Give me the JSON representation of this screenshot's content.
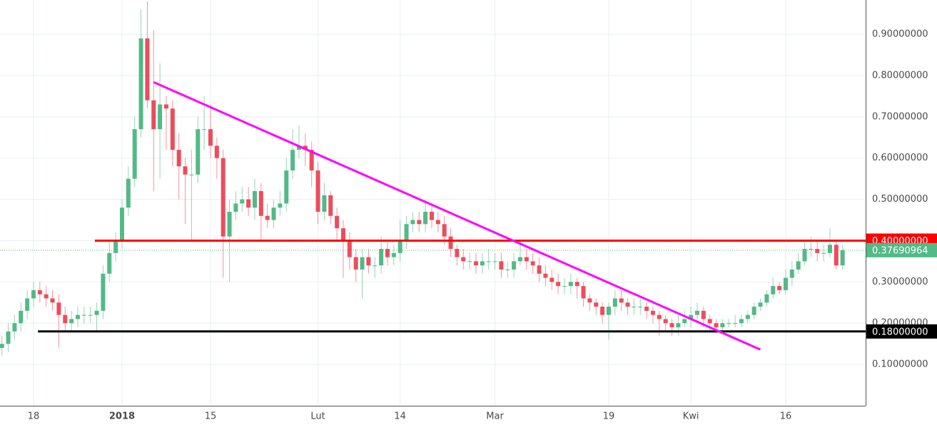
{
  "chart_data": {
    "type": "candlestick",
    "categories": [
      null,
      null,
      null,
      null,
      null,
      "18",
      null,
      null,
      null,
      null,
      null,
      null,
      null,
      null,
      null,
      null,
      null,
      null,
      null,
      "2018",
      null,
      null,
      null,
      null,
      null,
      null,
      null,
      null,
      null,
      null,
      null,
      null,
      null,
      "15",
      null,
      null,
      null,
      null,
      null,
      null,
      null,
      null,
      null,
      null,
      null,
      null,
      null,
      null,
      null,
      null,
      "Lut",
      null,
      null,
      null,
      null,
      null,
      null,
      null,
      null,
      null,
      null,
      null,
      null,
      "14",
      null,
      null,
      null,
      null,
      null,
      null,
      null,
      null,
      null,
      null,
      null,
      null,
      null,
      null,
      "Mar",
      null,
      null,
      null,
      null,
      null,
      null,
      null,
      null,
      null,
      null,
      null,
      null,
      null,
      null,
      null,
      null,
      null,
      "19",
      null,
      null,
      null,
      null,
      null,
      null,
      null,
      null,
      null,
      null,
      null,
      null,
      "Kwi",
      null,
      null,
      null,
      null,
      null,
      null,
      null,
      null,
      null,
      null,
      null,
      null,
      null,
      null,
      "16",
      null,
      null,
      null,
      null,
      null,
      null,
      null,
      null,
      null
    ],
    "open": [
      0.14,
      0.15,
      0.18,
      0.2,
      0.23,
      0.26,
      0.28,
      0.27,
      0.26,
      0.25,
      0.22,
      0.2,
      0.21,
      0.22,
      0.22,
      0.22,
      0.23,
      0.32,
      0.37,
      0.4,
      0.48,
      0.55,
      0.67,
      0.89,
      0.74,
      0.67,
      0.73,
      0.72,
      0.62,
      0.58,
      0.56,
      0.56,
      0.67,
      0.67,
      0.63,
      0.6,
      0.41,
      0.47,
      0.49,
      0.5,
      0.48,
      0.52,
      0.46,
      0.45,
      0.48,
      0.49,
      0.57,
      0.62,
      0.63,
      0.62,
      0.57,
      0.47,
      0.51,
      0.46,
      0.43,
      0.4,
      0.36,
      0.33,
      0.36,
      0.34,
      0.34,
      0.38,
      0.36,
      0.37,
      0.4,
      0.44,
      0.45,
      0.44,
      0.47,
      0.45,
      0.44,
      0.41,
      0.38,
      0.36,
      0.35,
      0.35,
      0.34,
      0.35,
      0.35,
      0.35,
      0.33,
      0.33,
      0.35,
      0.36,
      0.35,
      0.34,
      0.32,
      0.31,
      0.3,
      0.29,
      0.29,
      0.3,
      0.29,
      0.26,
      0.25,
      0.24,
      0.22,
      0.24,
      0.26,
      0.25,
      0.24,
      0.24,
      0.24,
      0.23,
      0.22,
      0.21,
      0.2,
      0.19,
      0.2,
      0.21,
      0.22,
      0.23,
      0.21,
      0.2,
      0.19,
      0.2,
      0.2,
      0.2,
      0.21,
      0.22,
      0.24,
      0.25,
      0.27,
      0.29,
      0.28,
      0.31,
      0.33,
      0.35,
      0.38,
      0.38,
      0.37,
      0.37,
      0.39,
      0.34
    ],
    "high": [
      0.17,
      0.2,
      0.22,
      0.25,
      0.28,
      0.3,
      0.3,
      0.29,
      0.28,
      0.27,
      0.24,
      0.23,
      0.24,
      0.24,
      0.24,
      0.25,
      0.34,
      0.4,
      0.42,
      0.5,
      0.58,
      0.7,
      0.96,
      0.98,
      0.91,
      0.83,
      0.75,
      0.74,
      0.66,
      0.6,
      0.62,
      0.7,
      0.75,
      0.73,
      0.65,
      0.62,
      0.5,
      0.52,
      0.53,
      0.53,
      0.55,
      0.54,
      0.49,
      0.5,
      0.52,
      0.6,
      0.67,
      0.68,
      0.66,
      0.64,
      0.59,
      0.54,
      0.52,
      0.48,
      0.45,
      0.42,
      0.38,
      0.38,
      0.38,
      0.36,
      0.41,
      0.4,
      0.39,
      0.45,
      0.46,
      0.47,
      0.47,
      0.5,
      0.49,
      0.47,
      0.46,
      0.43,
      0.39,
      0.38,
      0.37,
      0.37,
      0.37,
      0.38,
      0.37,
      0.37,
      0.35,
      0.37,
      0.4,
      0.38,
      0.37,
      0.36,
      0.34,
      0.33,
      0.32,
      0.31,
      0.32,
      0.31,
      0.3,
      0.27,
      0.26,
      0.25,
      0.25,
      0.28,
      0.28,
      0.26,
      0.26,
      0.26,
      0.25,
      0.24,
      0.23,
      0.22,
      0.21,
      0.22,
      0.23,
      0.24,
      0.25,
      0.24,
      0.22,
      0.21,
      0.21,
      0.21,
      0.22,
      0.22,
      0.23,
      0.25,
      0.26,
      0.28,
      0.31,
      0.3,
      0.33,
      0.35,
      0.37,
      0.4,
      0.41,
      0.4,
      0.39,
      0.43,
      0.4,
      0.39
    ],
    "low": [
      0.12,
      0.13,
      0.16,
      0.18,
      0.21,
      0.24,
      0.25,
      0.24,
      0.23,
      0.14,
      0.18,
      0.18,
      0.19,
      0.2,
      0.2,
      0.18,
      0.21,
      0.3,
      0.35,
      0.38,
      0.46,
      0.53,
      0.65,
      0.72,
      0.52,
      0.55,
      0.62,
      0.58,
      0.5,
      0.44,
      0.4,
      0.54,
      0.62,
      0.6,
      0.55,
      0.31,
      0.3,
      0.45,
      0.47,
      0.46,
      0.45,
      0.4,
      0.43,
      0.43,
      0.46,
      0.47,
      0.55,
      0.6,
      0.58,
      0.53,
      0.44,
      0.45,
      0.44,
      0.4,
      0.31,
      0.33,
      0.3,
      0.26,
      0.32,
      0.31,
      0.32,
      0.34,
      0.34,
      0.35,
      0.38,
      0.42,
      0.42,
      0.42,
      0.43,
      0.42,
      0.39,
      0.36,
      0.34,
      0.33,
      0.33,
      0.32,
      0.32,
      0.33,
      0.33,
      0.31,
      0.31,
      0.31,
      0.34,
      0.33,
      0.32,
      0.3,
      0.29,
      0.28,
      0.27,
      0.27,
      0.27,
      0.26,
      0.24,
      0.23,
      0.22,
      0.2,
      0.16,
      0.22,
      0.23,
      0.22,
      0.22,
      0.22,
      0.21,
      0.2,
      0.17,
      0.18,
      0.17,
      0.17,
      0.19,
      0.19,
      0.2,
      0.19,
      0.18,
      0.18,
      0.18,
      0.19,
      0.19,
      0.19,
      0.2,
      0.21,
      0.23,
      0.24,
      0.26,
      0.27,
      0.27,
      0.29,
      0.32,
      0.34,
      0.36,
      0.35,
      0.35,
      0.36,
      0.33,
      0.33
    ],
    "close": [
      0.15,
      0.18,
      0.2,
      0.23,
      0.26,
      0.28,
      0.27,
      0.26,
      0.25,
      0.22,
      0.2,
      0.21,
      0.22,
      0.22,
      0.22,
      0.23,
      0.32,
      0.37,
      0.4,
      0.48,
      0.55,
      0.67,
      0.89,
      0.74,
      0.67,
      0.73,
      0.72,
      0.62,
      0.58,
      0.56,
      0.56,
      0.67,
      0.67,
      0.63,
      0.6,
      0.41,
      0.47,
      0.49,
      0.5,
      0.48,
      0.52,
      0.46,
      0.45,
      0.48,
      0.49,
      0.57,
      0.62,
      0.63,
      0.62,
      0.57,
      0.47,
      0.51,
      0.46,
      0.43,
      0.4,
      0.36,
      0.33,
      0.36,
      0.34,
      0.34,
      0.38,
      0.36,
      0.37,
      0.4,
      0.44,
      0.45,
      0.44,
      0.47,
      0.45,
      0.44,
      0.41,
      0.38,
      0.36,
      0.35,
      0.35,
      0.34,
      0.35,
      0.35,
      0.35,
      0.33,
      0.33,
      0.35,
      0.36,
      0.35,
      0.34,
      0.32,
      0.31,
      0.3,
      0.29,
      0.29,
      0.3,
      0.29,
      0.26,
      0.25,
      0.24,
      0.22,
      0.24,
      0.26,
      0.25,
      0.24,
      0.24,
      0.24,
      0.23,
      0.22,
      0.21,
      0.2,
      0.19,
      0.2,
      0.21,
      0.22,
      0.23,
      0.21,
      0.2,
      0.19,
      0.2,
      0.2,
      0.2,
      0.21,
      0.22,
      0.24,
      0.25,
      0.27,
      0.29,
      0.28,
      0.31,
      0.33,
      0.35,
      0.38,
      0.38,
      0.37,
      0.37,
      0.39,
      0.34,
      0.37690964
    ],
    "up_color": "#53b987",
    "down_color": "#eb4d5c",
    "ylim": [
      0,
      0.983
    ],
    "yticks": [
      {
        "value": 0.1,
        "label": "0.10000000"
      },
      {
        "value": 0.2,
        "label": "0.20000000"
      },
      {
        "value": 0.3,
        "label": "0.30000000"
      },
      {
        "value": 0.4,
        "label": "0.40000000"
      },
      {
        "value": 0.5,
        "label": "0.50000000"
      },
      {
        "value": 0.6,
        "label": "0.60000000"
      },
      {
        "value": 0.7,
        "label": "0.70000000"
      },
      {
        "value": 0.8,
        "label": "0.80000000"
      },
      {
        "value": 0.9,
        "label": "0.90000000"
      }
    ],
    "grid": true,
    "last_price": {
      "value": 0.37690964,
      "label": "0.37690964"
    },
    "levels": [
      {
        "value": 0.4,
        "label": "0.40000000",
        "color": "#ff0000",
        "start": 14.7
      },
      {
        "value": 0.18,
        "label": "0.18000000",
        "color": "#000000",
        "start": 5.7
      }
    ],
    "trendline": {
      "x": [
        24,
        120
      ],
      "y": [
        0.784,
        0.136
      ],
      "color": "#ff00ff"
    }
  }
}
